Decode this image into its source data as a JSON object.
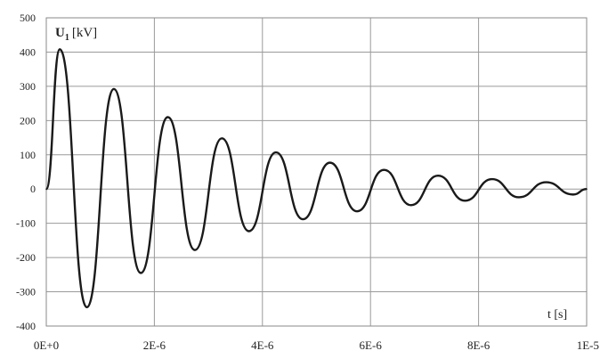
{
  "chart_data": {
    "type": "line",
    "title": "",
    "ylabel_main": "U",
    "ylabel_sub": "1",
    "ylabel_unit": "[kV]",
    "xlabel": "t [s]",
    "xlim": [
      0,
      1e-05
    ],
    "ylim": [
      -400,
      500
    ],
    "grid": true,
    "y_ticks": [
      {
        "value": 500,
        "label": "500"
      },
      {
        "value": 400,
        "label": "400"
      },
      {
        "value": 300,
        "label": "300"
      },
      {
        "value": 200,
        "label": "200"
      },
      {
        "value": 100,
        "label": "100"
      },
      {
        "value": 0,
        "label": "0"
      },
      {
        "value": -100,
        "label": "-100"
      },
      {
        "value": -200,
        "label": "-200"
      },
      {
        "value": -300,
        "label": "-300"
      },
      {
        "value": -400,
        "label": "-400"
      }
    ],
    "x_ticks": [
      {
        "value": 0,
        "label": "0E+0"
      },
      {
        "value": 2e-06,
        "label": "2E-6"
      },
      {
        "value": 4e-06,
        "label": "4E-6"
      },
      {
        "value": 6e-06,
        "label": "6E-6"
      },
      {
        "value": 8e-06,
        "label": "8E-6"
      },
      {
        "value": 1e-05,
        "label": "1E-5"
      }
    ],
    "series": [
      {
        "color": "#1a1a1a",
        "x": [
          0,
          2.5e-07,
          7.5e-07,
          1.25e-06,
          1.75e-06,
          2.25e-06,
          2.75e-06,
          3.25e-06,
          3.75e-06,
          4.25e-06,
          4.75e-06,
          5.25e-06,
          5.75e-06,
          6.25e-06,
          6.75e-06,
          7.25e-06,
          7.75e-06,
          8.25e-06,
          8.75e-06,
          9.25e-06,
          9.75e-06,
          1e-05
        ],
        "y": [
          0,
          408,
          -345,
          292,
          -245,
          210,
          -178,
          148,
          -123,
          107,
          -88,
          77,
          -65,
          56,
          -47,
          39,
          -34,
          29,
          -24,
          20,
          -16,
          0
        ]
      }
    ]
  }
}
